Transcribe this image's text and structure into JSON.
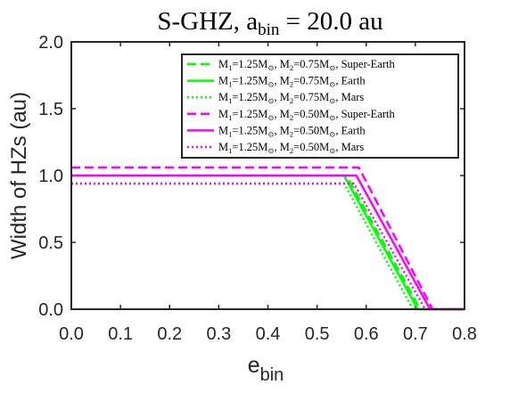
{
  "chart_data": {
    "type": "line",
    "title_main": "S-GHZ, a",
    "title_sub": "bin",
    "title_tail": " = 20.0 au",
    "xlabel_main": "e",
    "xlabel_sub": "bin",
    "ylabel": "Width of HZs (au)",
    "xlim": [
      0.0,
      0.8
    ],
    "ylim": [
      0.0,
      2.0
    ],
    "xticks": [
      "0.0",
      "0.1",
      "0.2",
      "0.3",
      "0.4",
      "0.5",
      "0.6",
      "0.7",
      "0.8"
    ],
    "yticks": [
      "0.0",
      "0.5",
      "1.0",
      "1.5",
      "2.0"
    ],
    "grid": false,
    "legend_position": "top-right",
    "series": [
      {
        "label_parts": [
          "M",
          "1",
          "=1.25M",
          "⊙",
          ", M",
          "2",
          "=0.75M",
          "⊙",
          ", Super-Earth"
        ],
        "color": "#00ff00",
        "style": "dashed",
        "x": [
          0.0,
          0.56,
          0.71,
          0.8
        ],
        "y": [
          1.0,
          1.0,
          0.0,
          0.0
        ]
      },
      {
        "label_parts": [
          "M",
          "1",
          "=1.25M",
          "⊙",
          ", M",
          "2",
          "=0.75M",
          "⊙",
          ", Earth"
        ],
        "color": "#00ff00",
        "style": "solid",
        "x": [
          0.0,
          0.555,
          0.705,
          0.8
        ],
        "y": [
          1.0,
          1.0,
          0.0,
          0.0
        ]
      },
      {
        "label_parts": [
          "M",
          "1",
          "=1.25M",
          "⊙",
          ", M",
          "2",
          "=0.75M",
          "⊙",
          ", Mars"
        ],
        "color": "#00ff00",
        "style": "dotted",
        "x": [
          0.0,
          0.555,
          0.695,
          0.8
        ],
        "y": [
          0.94,
          0.94,
          0.0,
          0.0
        ]
      },
      {
        "label_parts": [
          "M",
          "1",
          "=1.25M",
          "⊙",
          ", M",
          "2",
          "=0.50M",
          "⊙",
          ", Super-Earth"
        ],
        "color": "#ff00ff",
        "style": "dashed",
        "x": [
          0.0,
          0.585,
          0.735,
          0.8
        ],
        "y": [
          1.06,
          1.06,
          0.0,
          0.0
        ]
      },
      {
        "label_parts": [
          "M",
          "1",
          "=1.25M",
          "⊙",
          ", M",
          "2",
          "=0.50M",
          "⊙",
          ", Earth"
        ],
        "color": "#ff00ff",
        "style": "solid",
        "x": [
          0.0,
          0.58,
          0.73,
          0.8
        ],
        "y": [
          1.0,
          1.0,
          0.0,
          0.0
        ]
      },
      {
        "label_parts": [
          "M",
          "1",
          "=1.25M",
          "⊙",
          ", M",
          "2",
          "=0.50M",
          "⊙",
          ", Mars"
        ],
        "color": "#ff00ff",
        "style": "dotted",
        "x": [
          0.0,
          0.575,
          0.72,
          0.8
        ],
        "y": [
          0.94,
          0.94,
          0.0,
          0.0
        ]
      }
    ]
  }
}
